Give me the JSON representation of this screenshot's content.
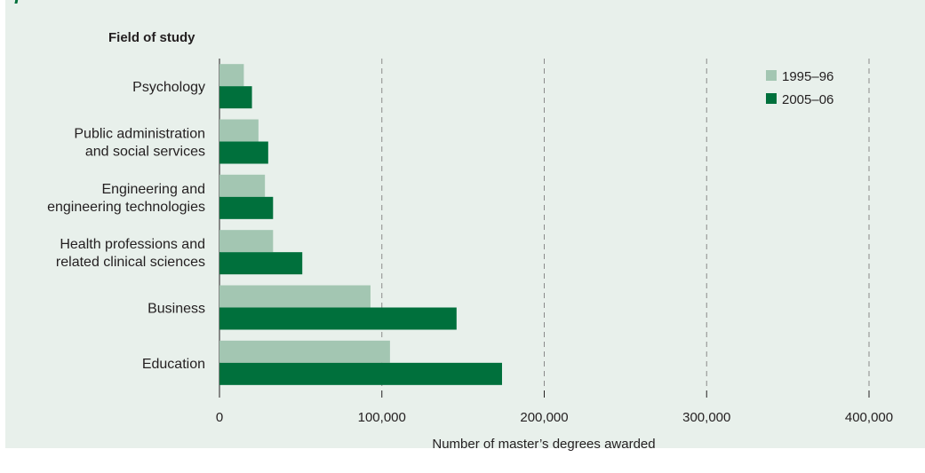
{
  "chart_data": {
    "type": "bar",
    "orientation": "horizontal",
    "yaxis_title": "Field of study",
    "xlabel": "Number of master’s degrees awarded",
    "xlim": [
      0,
      400000
    ],
    "xticks": [
      0,
      100000,
      200000,
      300000,
      400000
    ],
    "xtick_labels": [
      "0",
      "100,000",
      "200,000",
      "300,000",
      "400,000"
    ],
    "grid": "vertical dashed",
    "legend_position": "top-right",
    "categories": [
      {
        "lines": [
          "Psychology"
        ]
      },
      {
        "lines": [
          "Public administration",
          "and social services"
        ]
      },
      {
        "lines": [
          "Engineering and",
          "engineering technologies"
        ]
      },
      {
        "lines": [
          "Health professions and",
          "related clinical sciences"
        ]
      },
      {
        "lines": [
          "Business"
        ]
      },
      {
        "lines": [
          "Education"
        ]
      }
    ],
    "series": [
      {
        "name": "1995–96",
        "color": "#a3c6b2",
        "values": [
          15000,
          24000,
          28000,
          33000,
          93000,
          105000
        ]
      },
      {
        "name": "2005–06",
        "color": "#00703c",
        "values": [
          20000,
          30000,
          33000,
          51000,
          146000,
          174000
        ]
      }
    ]
  }
}
